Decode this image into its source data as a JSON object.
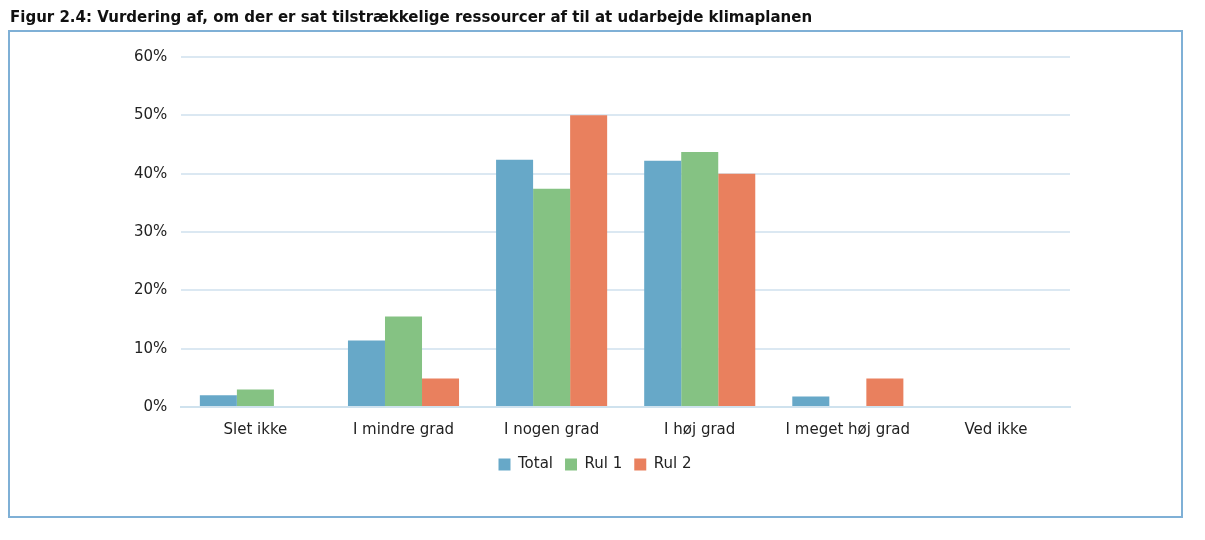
{
  "chart_data": {
    "type": "bar",
    "title": "Figur 2.4: Vurdering af, om der er sat tilstrækkelige ressourcer af til at udarbejde klimaplanen",
    "categories": [
      "Slet ikke",
      "I mindre grad",
      "I nogen grad",
      "I høj grad",
      "I meget høj grad",
      "Ved ikke"
    ],
    "series": [
      {
        "name": "Total",
        "color": "#67a8c8",
        "values": [
          2,
          11.4,
          42.4,
          42.2,
          1.8,
          0
        ]
      },
      {
        "name": "Rul 1",
        "color": "#85c283",
        "values": [
          3,
          15.5,
          37.4,
          43.7,
          0,
          0
        ]
      },
      {
        "name": "Rul 2",
        "color": "#e9805e",
        "values": [
          0,
          4.9,
          50,
          40,
          4.9,
          0
        ]
      }
    ],
    "ylim": [
      0,
      60
    ],
    "yticks": [
      {
        "value": 0,
        "label": "0%"
      },
      {
        "value": 10,
        "label": "10%"
      },
      {
        "value": 20,
        "label": "20%"
      },
      {
        "value": 30,
        "label": "30%"
      },
      {
        "value": 40,
        "label": "40%"
      },
      {
        "value": 50,
        "label": "50%"
      },
      {
        "value": 60,
        "label": "60%"
      }
    ],
    "grid": "y",
    "legend": "bottom"
  }
}
